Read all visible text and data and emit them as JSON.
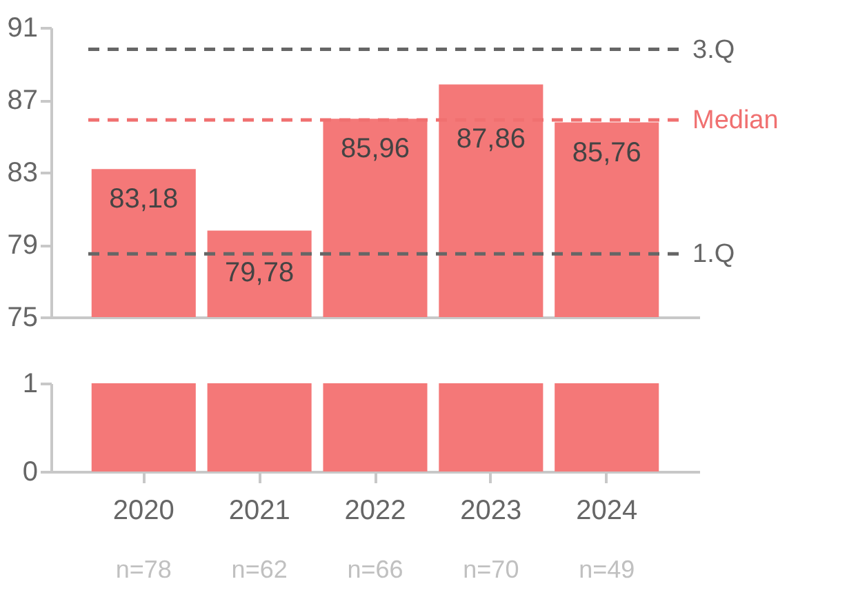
{
  "chart_data": [
    {
      "type": "bar",
      "categories": [
        "2020",
        "2021",
        "2022",
        "2023",
        "2024"
      ],
      "values": [
        83.18,
        79.78,
        85.96,
        87.86,
        85.76
      ],
      "color": "#f47878",
      "value_labels": [
        "83,18",
        "79,78",
        "85,96",
        "87,86",
        "85,76"
      ],
      "ylim": [
        75,
        91
      ],
      "yticks": [
        75,
        79,
        83,
        87,
        91
      ],
      "grid": false,
      "tick_labels": "y",
      "ref_lines": [
        {
          "axis": "y",
          "value": 89.8,
          "label": "3.Q",
          "color": "#666666",
          "line_style": "dashed"
        },
        {
          "axis": "y",
          "value": 85.9,
          "label": "Median",
          "color": "#f07070",
          "line_style": "dashed"
        },
        {
          "axis": "y",
          "value": 78.5,
          "label": "1.Q",
          "color": "#666666",
          "line_style": "dashed"
        }
      ]
    },
    {
      "type": "bar",
      "categories": [
        "2020",
        "2021",
        "2022",
        "2023",
        "2024"
      ],
      "values": [
        1,
        1,
        1,
        1,
        1
      ],
      "color": "#f47878",
      "ylim": [
        0,
        1
      ],
      "yticks": [
        0,
        1
      ],
      "grid": false,
      "annotations": [
        "n=78",
        "n=62",
        "n=66",
        "n=70",
        "n=49"
      ]
    }
  ]
}
